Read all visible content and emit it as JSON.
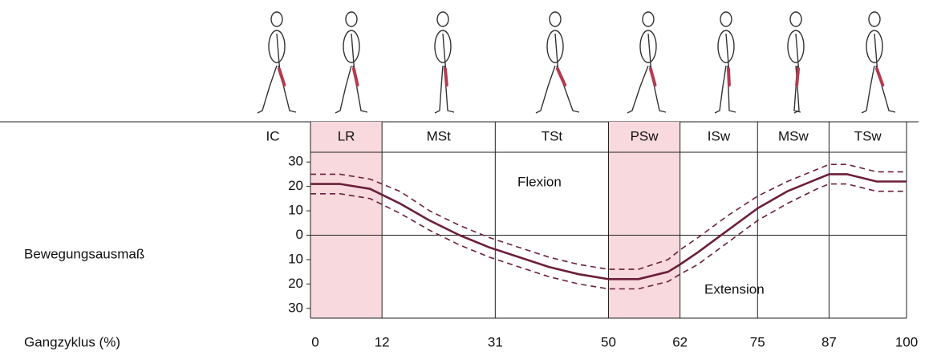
{
  "chart_data": {
    "type": "line",
    "x_label": "Gangzyklus (%)",
    "y_label": "Bewegungsausmaß",
    "annotations": [
      "Flexion",
      "Extension"
    ],
    "pre_phase": "IC",
    "phases": [
      {
        "label": "LR",
        "shaded": true
      },
      {
        "label": "MSt",
        "shaded": false
      },
      {
        "label": "TSt",
        "shaded": false
      },
      {
        "label": "PSw",
        "shaded": true
      },
      {
        "label": "ISw",
        "shaded": false
      },
      {
        "label": "MSw",
        "shaded": false
      },
      {
        "label": "TSw",
        "shaded": false
      }
    ],
    "shade_color": "#f7d9de",
    "x": [
      0,
      5,
      10,
      15,
      20,
      25,
      30,
      35,
      40,
      45,
      50,
      55,
      60,
      62,
      65,
      70,
      75,
      80,
      85,
      87,
      90,
      95,
      100
    ],
    "series": [
      {
        "color": "#6b1f3a",
        "dashed": false,
        "values": [
          21,
          21,
          19,
          13,
          6,
          0,
          -5,
          -9,
          -13,
          -16,
          -18,
          -18,
          -15,
          -12,
          -7,
          2,
          11,
          18,
          23,
          25,
          25,
          22,
          22
        ]
      },
      {
        "color": "#6b1f3a",
        "dashed": true,
        "values": [
          25,
          25,
          23,
          18,
          10,
          4,
          -1,
          -5,
          -9,
          -12,
          -14,
          -14,
          -10,
          -6,
          -1,
          8,
          16,
          22,
          27,
          29,
          29,
          26,
          26
        ]
      },
      {
        "color": "#6b1f3a",
        "dashed": true,
        "values": [
          17,
          17,
          15,
          9,
          2,
          -4,
          -9,
          -13,
          -17,
          -20,
          -22,
          -22,
          -19,
          -16,
          -12,
          -3,
          6,
          13,
          19,
          21,
          21,
          18,
          18
        ]
      }
    ],
    "xlim": [
      0,
      100
    ],
    "xticks": [
      0,
      12,
      31,
      50,
      62,
      75,
      87,
      100
    ],
    "ylim": [
      -34,
      34
    ],
    "yticks": [
      30,
      20,
      10,
      0,
      {
        "value": -10,
        "label": "10"
      },
      {
        "value": -20,
        "label": "20"
      },
      {
        "value": -30,
        "label": "30"
      }
    ],
    "zero_line": true
  }
}
